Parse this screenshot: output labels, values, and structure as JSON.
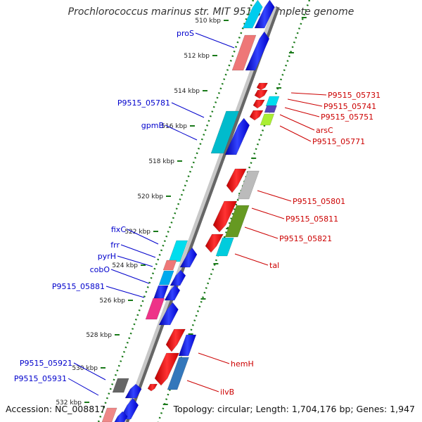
{
  "title": "Prochlorococcus marinus str. MIT 9515, complete genome",
  "footer": {
    "accession": "Accession: NC_008817",
    "topology": "Topology: circular; Length: 1,704,176 bp; Genes: 1,947"
  },
  "colors": {
    "forward_label": "#0000cc",
    "reverse_label": "#cc0000",
    "tick": "#1a7a1a"
  },
  "kbp_ticks": [
    "510 kbp",
    "512 kbp",
    "514 kbp",
    "516 kbp",
    "518 kbp",
    "520 kbp",
    "522 kbp",
    "524 kbp",
    "526 kbp",
    "528 kbp",
    "530 kbp",
    "532 kbp"
  ],
  "forward_genes": [
    "proS",
    "P9515_05781",
    "gpmB",
    "fixC",
    "frr",
    "pyrH",
    "cobO",
    "P9515_05881",
    "P9515_05921",
    "P9515_05931"
  ],
  "reverse_genes": [
    "P9515_05731",
    "P9515_05741",
    "P9515_05751",
    "arsC",
    "P9515_05771",
    "P9515_05801",
    "P9515_05811",
    "P9515_05821",
    "tal",
    "hemH",
    "ilvB"
  ]
}
